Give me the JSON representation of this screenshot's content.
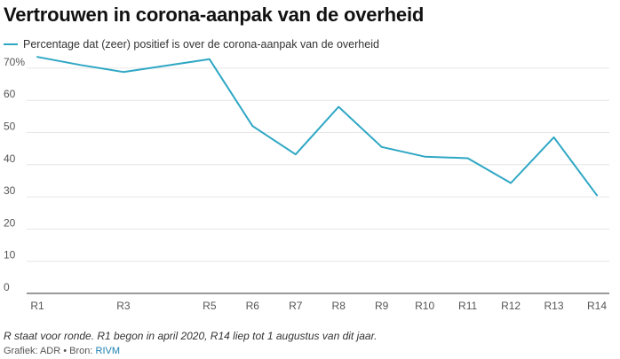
{
  "header": {
    "title": "Vertrouwen in corona-aanpak van de overheid"
  },
  "footer": {
    "note": "R staat voor ronde. R1 begon in april 2020, R14 liep tot 1 augustus van dit jaar.",
    "credit_prefix": "Grafiek: ADR • Bron: ",
    "source_link": "RIVM"
  },
  "colors": {
    "series": "#2ea7c4",
    "grid": "#e6e6e6",
    "axis": "#333333"
  },
  "chart_data": {
    "type": "line",
    "title": "Vertrouwen in corona-aanpak van de overheid",
    "xlabel": "",
    "ylabel": "",
    "ylim": [
      0,
      73
    ],
    "y_ticks": [
      0,
      10,
      20,
      30,
      40,
      50,
      60,
      70
    ],
    "y_tick_labels": [
      "0",
      "10",
      "20",
      "30",
      "40",
      "50",
      "60",
      "70%"
    ],
    "grid": true,
    "legend_position": "top-left",
    "x": [
      "R1",
      "R2",
      "R3",
      "R4",
      "R5",
      "R6",
      "R7",
      "R8",
      "R9",
      "R10",
      "R11",
      "R12",
      "R13",
      "R14"
    ],
    "x_tick_labels": [
      "R1",
      "R3",
      "R5",
      "R6",
      "R7",
      "R8",
      "R9",
      "R10",
      "R11",
      "R12",
      "R13",
      "R14"
    ],
    "series": [
      {
        "name": "Percentage dat (zeer) positief is over de corona-aanpak van de overheid",
        "values": [
          73.5,
          71,
          68.8,
          70.8,
          72.8,
          52,
          43.2,
          58,
          45.5,
          42.5,
          42,
          34.3,
          48.5,
          30.5
        ]
      }
    ]
  }
}
